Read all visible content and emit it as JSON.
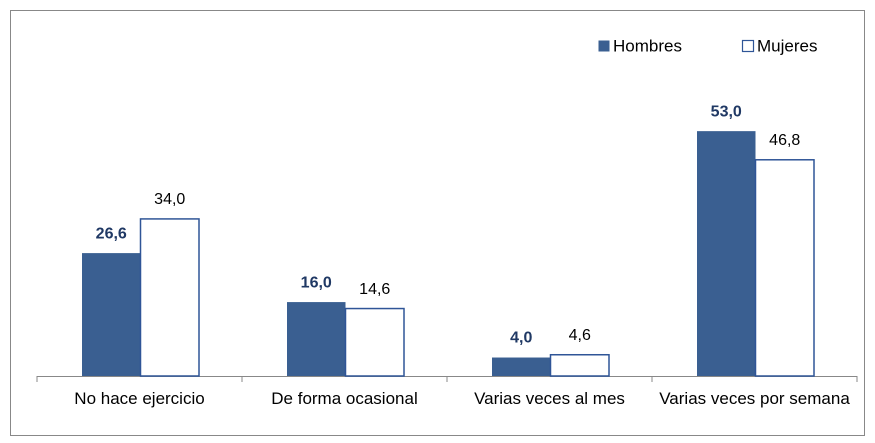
{
  "chart_data": {
    "type": "bar",
    "categories": [
      "No hace ejercicio",
      "De forma ocasional",
      "Varias veces al mes",
      "Varias veces por semana"
    ],
    "series": [
      {
        "name": "Hombres",
        "color": "#3a5f91",
        "values": [
          26.6,
          16.0,
          4.0,
          53.0
        ],
        "value_labels": [
          "26,6",
          "16,0",
          "4,0",
          "53,0"
        ]
      },
      {
        "name": "Mujeres",
        "color": "#ffffff",
        "values": [
          34.0,
          14.6,
          4.6,
          46.8
        ],
        "value_labels": [
          "34,0",
          "14,6",
          "4,6",
          "46,8"
        ]
      }
    ],
    "legend": "top-right"
  }
}
